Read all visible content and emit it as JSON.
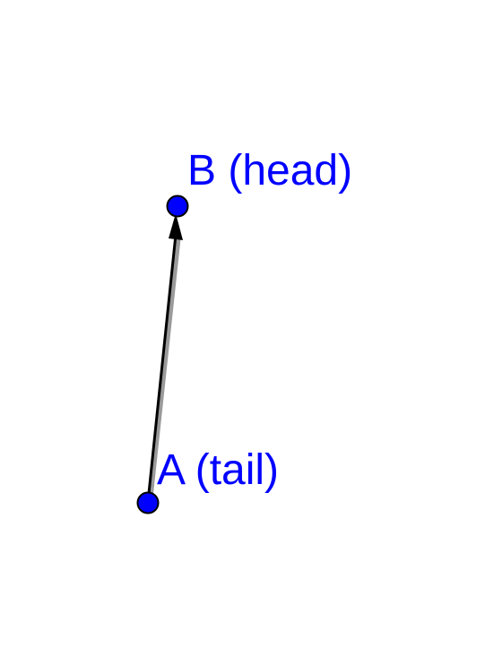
{
  "diagram": {
    "points": [
      {
        "id": "A",
        "label": "A (tail)"
      },
      {
        "id": "B",
        "label": "B (head)"
      }
    ],
    "vector": {
      "from": "A",
      "to": "B"
    },
    "colors": {
      "point_fill": "#0000ff",
      "point_stroke": "#000000",
      "label": "#0000ff",
      "vector": "#000000",
      "background": "#ffffff"
    }
  }
}
